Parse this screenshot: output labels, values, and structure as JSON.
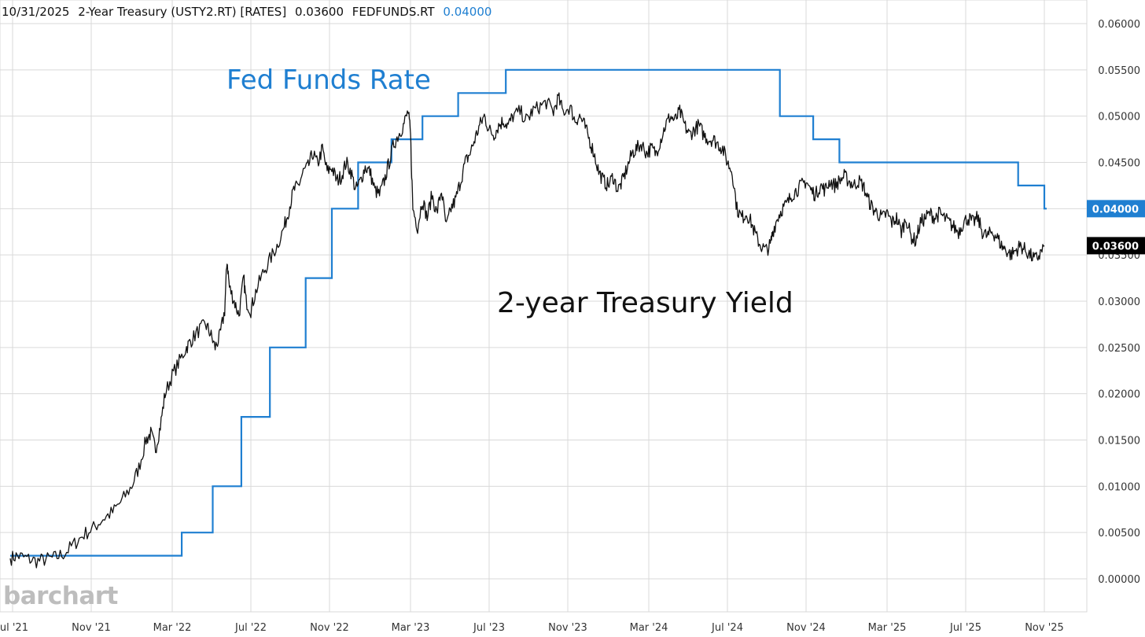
{
  "header": {
    "date": "10/31/2025",
    "symbol_label": "2-Year Treasury (USTY2.RT) [RATES]",
    "symbol_value": "0.03600",
    "compare_label": "FEDFUNDS.RT",
    "compare_value": "0.04000"
  },
  "logo": "barchart",
  "colors": {
    "fed": "#1f7fd1",
    "treasury": "#111111",
    "grid": "#d9d9d9",
    "axis_text": "#333333"
  },
  "chart_data": {
    "type": "line",
    "x_ticks": [
      {
        "label": "Jul '21",
        "t": 2021.5
      },
      {
        "label": "Nov '21",
        "t": 2021.83
      },
      {
        "label": "Mar '22",
        "t": 2022.17
      },
      {
        "label": "Jul '22",
        "t": 2022.5
      },
      {
        "label": "Nov '22",
        "t": 2022.83
      },
      {
        "label": "Mar '23",
        "t": 2023.17
      },
      {
        "label": "Jul '23",
        "t": 2023.5
      },
      {
        "label": "Nov '23",
        "t": 2023.83
      },
      {
        "label": "Mar '24",
        "t": 2024.17
      },
      {
        "label": "Jul '24",
        "t": 2024.5
      },
      {
        "label": "Nov '24",
        "t": 2024.83
      },
      {
        "label": "Mar '25",
        "t": 2025.17
      },
      {
        "label": "Jul '25",
        "t": 2025.5
      },
      {
        "label": "Nov '25",
        "t": 2025.83
      }
    ],
    "y_ticks": [
      "0.00000",
      "0.00500",
      "0.01000",
      "0.01500",
      "0.02000",
      "0.02500",
      "0.03000",
      "0.03500",
      "0.04000",
      "0.04500",
      "0.05000",
      "0.05500",
      "0.06000"
    ],
    "xlim": [
      2021.49,
      2025.92
    ],
    "ylim": [
      -0.0015,
      0.0625
    ],
    "series": [
      {
        "name": "FEDFUNDS.RT",
        "style": "step",
        "last_value": "0.04000",
        "points": [
          [
            2021.49,
            0.0025
          ],
          [
            2022.21,
            0.005
          ],
          [
            2022.34,
            0.01
          ],
          [
            2022.46,
            0.0175
          ],
          [
            2022.58,
            0.025
          ],
          [
            2022.73,
            0.0325
          ],
          [
            2022.84,
            0.04
          ],
          [
            2022.95,
            0.045
          ],
          [
            2023.09,
            0.0475
          ],
          [
            2023.22,
            0.05
          ],
          [
            2023.37,
            0.0525
          ],
          [
            2023.57,
            0.055
          ],
          [
            2024.72,
            0.05
          ],
          [
            2024.86,
            0.0475
          ],
          [
            2024.97,
            0.045
          ],
          [
            2025.72,
            0.0425
          ],
          [
            2025.83,
            0.04
          ]
        ]
      },
      {
        "name": "USTY2.RT",
        "style": "line",
        "last_value": "0.03600",
        "points": [
          [
            2021.49,
            0.0022
          ],
          [
            2021.52,
            0.0025
          ],
          [
            2021.56,
            0.0022
          ],
          [
            2021.6,
            0.0019
          ],
          [
            2021.64,
            0.0021
          ],
          [
            2021.68,
            0.0023
          ],
          [
            2021.72,
            0.0028
          ],
          [
            2021.76,
            0.0038
          ],
          [
            2021.8,
            0.0048
          ],
          [
            2021.84,
            0.0055
          ],
          [
            2021.88,
            0.0065
          ],
          [
            2021.92,
            0.0072
          ],
          [
            2021.96,
            0.0085
          ],
          [
            2022.0,
            0.01
          ],
          [
            2022.03,
            0.012
          ],
          [
            2022.06,
            0.015
          ],
          [
            2022.08,
            0.0157
          ],
          [
            2022.1,
            0.014
          ],
          [
            2022.12,
            0.0165
          ],
          [
            2022.14,
            0.02
          ],
          [
            2022.17,
            0.022
          ],
          [
            2022.2,
            0.0235
          ],
          [
            2022.23,
            0.025
          ],
          [
            2022.25,
            0.0258
          ],
          [
            2022.28,
            0.0268
          ],
          [
            2022.31,
            0.0275
          ],
          [
            2022.33,
            0.0265
          ],
          [
            2022.35,
            0.025
          ],
          [
            2022.37,
            0.0262
          ],
          [
            2022.39,
            0.029
          ],
          [
            2022.4,
            0.0345
          ],
          [
            2022.41,
            0.0315
          ],
          [
            2022.43,
            0.03
          ],
          [
            2022.45,
            0.0285
          ],
          [
            2022.47,
            0.0325
          ],
          [
            2022.48,
            0.03
          ],
          [
            2022.5,
            0.029
          ],
          [
            2022.52,
            0.031
          ],
          [
            2022.55,
            0.033
          ],
          [
            2022.58,
            0.0345
          ],
          [
            2022.61,
            0.036
          ],
          [
            2022.64,
            0.038
          ],
          [
            2022.66,
            0.04
          ],
          [
            2022.68,
            0.042
          ],
          [
            2022.7,
            0.0425
          ],
          [
            2022.72,
            0.044
          ],
          [
            2022.74,
            0.0445
          ],
          [
            2022.76,
            0.046
          ],
          [
            2022.78,
            0.0448
          ],
          [
            2022.8,
            0.0465
          ],
          [
            2022.82,
            0.044
          ],
          [
            2022.84,
            0.0445
          ],
          [
            2022.86,
            0.043
          ],
          [
            2022.88,
            0.0435
          ],
          [
            2022.9,
            0.045
          ],
          [
            2022.92,
            0.044
          ],
          [
            2022.94,
            0.042
          ],
          [
            2022.96,
            0.043
          ],
          [
            2022.98,
            0.0445
          ],
          [
            2023.0,
            0.044
          ],
          [
            2023.02,
            0.042
          ],
          [
            2023.04,
            0.0415
          ],
          [
            2023.06,
            0.043
          ],
          [
            2023.08,
            0.045
          ],
          [
            2023.1,
            0.047
          ],
          [
            2023.12,
            0.048
          ],
          [
            2023.14,
            0.049
          ],
          [
            2023.16,
            0.0505
          ],
          [
            2023.17,
            0.048
          ],
          [
            2023.18,
            0.04
          ],
          [
            2023.2,
            0.038
          ],
          [
            2023.22,
            0.041
          ],
          [
            2023.24,
            0.039
          ],
          [
            2023.26,
            0.0415
          ],
          [
            2023.28,
            0.0395
          ],
          [
            2023.3,
            0.042
          ],
          [
            2023.32,
            0.038
          ],
          [
            2023.34,
            0.04
          ],
          [
            2023.36,
            0.041
          ],
          [
            2023.38,
            0.043
          ],
          [
            2023.4,
            0.045
          ],
          [
            2023.42,
            0.046
          ],
          [
            2023.44,
            0.0475
          ],
          [
            2023.46,
            0.049
          ],
          [
            2023.48,
            0.05
          ],
          [
            2023.5,
            0.0485
          ],
          [
            2023.52,
            0.048
          ],
          [
            2023.54,
            0.049
          ],
          [
            2023.56,
            0.0495
          ],
          [
            2023.58,
            0.049
          ],
          [
            2023.6,
            0.05
          ],
          [
            2023.63,
            0.0505
          ],
          [
            2023.66,
            0.0495
          ],
          [
            2023.68,
            0.0505
          ],
          [
            2023.71,
            0.051
          ],
          [
            2023.74,
            0.0515
          ],
          [
            2023.77,
            0.0505
          ],
          [
            2023.79,
            0.052
          ],
          [
            2023.81,
            0.0505
          ],
          [
            2023.84,
            0.051
          ],
          [
            2023.86,
            0.0495
          ],
          [
            2023.88,
            0.05
          ],
          [
            2023.9,
            0.049
          ],
          [
            2023.92,
            0.0475
          ],
          [
            2023.94,
            0.046
          ],
          [
            2023.96,
            0.044
          ],
          [
            2023.98,
            0.043
          ],
          [
            2024.0,
            0.0425
          ],
          [
            2024.02,
            0.0435
          ],
          [
            2024.04,
            0.042
          ],
          [
            2024.06,
            0.043
          ],
          [
            2024.08,
            0.0445
          ],
          [
            2024.1,
            0.046
          ],
          [
            2024.12,
            0.0465
          ],
          [
            2024.14,
            0.047
          ],
          [
            2024.16,
            0.046
          ],
          [
            2024.18,
            0.0465
          ],
          [
            2024.2,
            0.046
          ],
          [
            2024.22,
            0.0475
          ],
          [
            2024.24,
            0.049
          ],
          [
            2024.26,
            0.05
          ],
          [
            2024.28,
            0.0495
          ],
          [
            2024.3,
            0.0505
          ],
          [
            2024.32,
            0.049
          ],
          [
            2024.34,
            0.048
          ],
          [
            2024.36,
            0.0485
          ],
          [
            2024.38,
            0.049
          ],
          [
            2024.4,
            0.048
          ],
          [
            2024.42,
            0.0475
          ],
          [
            2024.44,
            0.0475
          ],
          [
            2024.46,
            0.047
          ],
          [
            2024.48,
            0.0465
          ],
          [
            2024.5,
            0.045
          ],
          [
            2024.52,
            0.044
          ],
          [
            2024.54,
            0.04
          ],
          [
            2024.56,
            0.039
          ],
          [
            2024.58,
            0.0395
          ],
          [
            2024.6,
            0.0385
          ],
          [
            2024.62,
            0.037
          ],
          [
            2024.64,
            0.036
          ],
          [
            2024.66,
            0.0355
          ],
          [
            2024.68,
            0.036
          ],
          [
            2024.69,
            0.0375
          ],
          [
            2024.71,
            0.039
          ],
          [
            2024.73,
            0.04
          ],
          [
            2024.75,
            0.0405
          ],
          [
            2024.77,
            0.0415
          ],
          [
            2024.79,
            0.042
          ],
          [
            2024.81,
            0.0425
          ],
          [
            2024.83,
            0.043
          ],
          [
            2024.85,
            0.042
          ],
          [
            2024.87,
            0.0415
          ],
          [
            2024.89,
            0.0425
          ],
          [
            2024.91,
            0.042
          ],
          [
            2024.93,
            0.043
          ],
          [
            2024.95,
            0.0425
          ],
          [
            2024.97,
            0.043
          ],
          [
            2024.99,
            0.0435
          ],
          [
            2025.01,
            0.043
          ],
          [
            2025.03,
            0.0425
          ],
          [
            2025.05,
            0.043
          ],
          [
            2025.07,
            0.0425
          ],
          [
            2025.09,
            0.041
          ],
          [
            2025.11,
            0.04
          ],
          [
            2025.13,
            0.0395
          ],
          [
            2025.15,
            0.039
          ],
          [
            2025.17,
            0.0395
          ],
          [
            2025.19,
            0.0385
          ],
          [
            2025.21,
            0.039
          ],
          [
            2025.23,
            0.0375
          ],
          [
            2025.25,
            0.039
          ],
          [
            2025.27,
            0.037
          ],
          [
            2025.29,
            0.0365
          ],
          [
            2025.31,
            0.0385
          ],
          [
            2025.33,
            0.039
          ],
          [
            2025.35,
            0.0395
          ],
          [
            2025.37,
            0.039
          ],
          [
            2025.39,
            0.0395
          ],
          [
            2025.41,
            0.039
          ],
          [
            2025.43,
            0.0385
          ],
          [
            2025.45,
            0.038
          ],
          [
            2025.47,
            0.0375
          ],
          [
            2025.49,
            0.0385
          ],
          [
            2025.51,
            0.039
          ],
          [
            2025.53,
            0.0385
          ],
          [
            2025.55,
            0.039
          ],
          [
            2025.57,
            0.0375
          ],
          [
            2025.59,
            0.037
          ],
          [
            2025.61,
            0.0375
          ],
          [
            2025.63,
            0.037
          ],
          [
            2025.65,
            0.036
          ],
          [
            2025.67,
            0.0355
          ],
          [
            2025.69,
            0.035
          ],
          [
            2025.71,
            0.0355
          ],
          [
            2025.73,
            0.036
          ],
          [
            2025.75,
            0.0355
          ],
          [
            2025.77,
            0.035
          ],
          [
            2025.79,
            0.0345
          ],
          [
            2025.81,
            0.035
          ],
          [
            2025.83,
            0.036
          ]
        ]
      }
    ],
    "annotations": [
      {
        "text": "Fed Funds Rate",
        "series": "FEDFUNDS.RT"
      },
      {
        "text": "2-year Treasury Yield",
        "series": "USTY2.RT"
      }
    ],
    "grid": true,
    "y_axis_side": "right"
  }
}
